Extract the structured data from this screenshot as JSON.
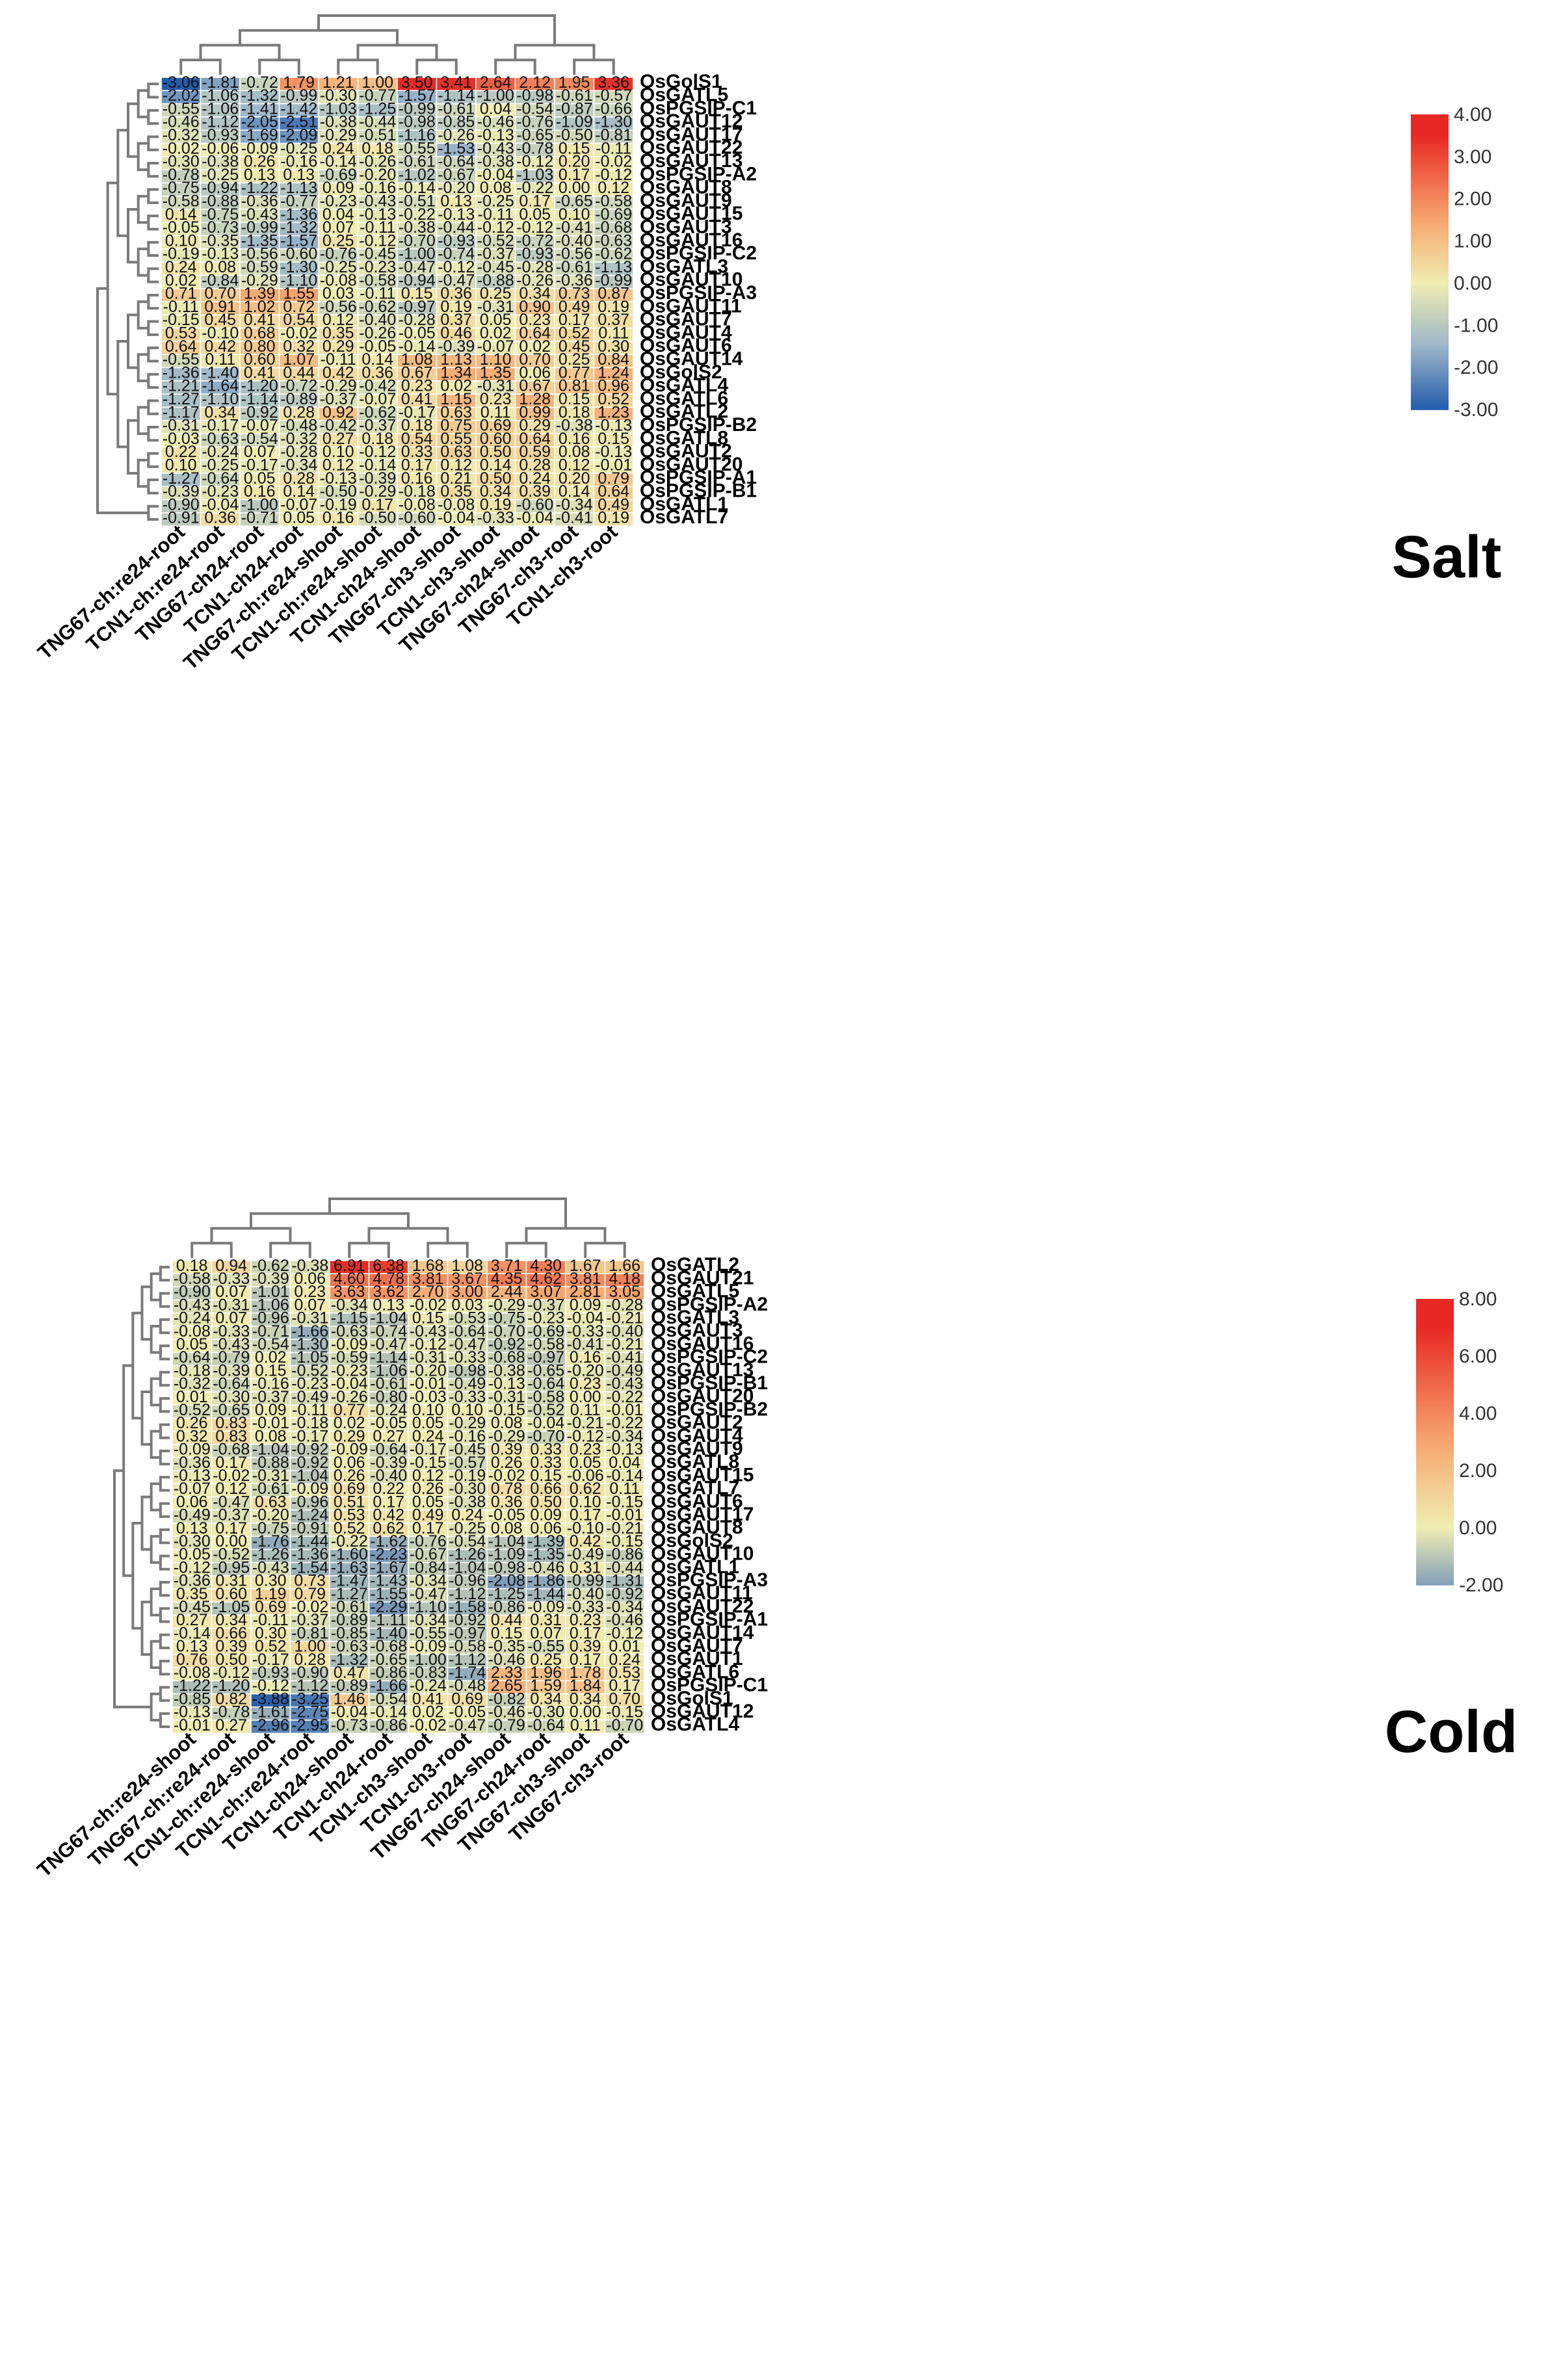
{
  "chart_data": [
    {
      "type": "heatmap",
      "title": "Salt",
      "columns": [
        "TNG67-ch:re24-root",
        "TCN1-ch:re24-root",
        "TNG67-ch24-root",
        "TCN1-ch24-root",
        "TNG67-ch:re24-shoot",
        "TCN1-ch:re24-shoot",
        "TCN1-ch24-shoot",
        "TNG67-ch3-shoot",
        "TCN1-ch3-shoot",
        "TNG67-ch24-shoot",
        "TNG67-ch3-root",
        "TCN1-ch3-root"
      ],
      "rows": [
        "OsGolS1",
        "OsGATL5",
        "OsPGSIP-C1",
        "OsGAUT12",
        "OsGAUT17",
        "OsGAUT22",
        "OsGAUT13",
        "OsPGSIP-A2",
        "OsGAUT8",
        "OsGAUT9",
        "OsGAUT15",
        "OsGAUT3",
        "OsGAUT16",
        "OsPGSIP-C2",
        "OsGATL3",
        "OsGAUT10",
        "OsPGSIP-A3",
        "OsGAUT11",
        "OsGAUT7",
        "OsGAUT4",
        "OsGAUT6",
        "OsGAUT14",
        "OsGolS2",
        "OsGATL4",
        "OsGATL6",
        "OsGATL2",
        "OsPGSIP-B2",
        "OsGATL8",
        "OsGAUT2",
        "OsGAUT20",
        "OsPGSIP-A1",
        "OsPGSIP-B1",
        "OsGATL1",
        "OsGATL7"
      ],
      "values": [
        [
          -3.06,
          -1.81,
          -0.72,
          1.79,
          1.21,
          1.0,
          3.5,
          3.41,
          2.64,
          2.12,
          1.95,
          3.36
        ],
        [
          -2.02,
          -1.06,
          -1.32,
          -0.99,
          -0.3,
          -0.77,
          -1.57,
          -1.14,
          -1.0,
          -0.98,
          -0.61,
          -0.57
        ],
        [
          -0.55,
          -1.06,
          -1.41,
          -1.42,
          -1.03,
          -1.25,
          -0.99,
          -0.61,
          0.04,
          -0.54,
          -0.87,
          -0.66
        ],
        [
          -0.46,
          -1.12,
          -2.05,
          -2.51,
          -0.38,
          -0.44,
          -0.98,
          -0.85,
          -0.46,
          -0.76,
          -1.09,
          -1.3
        ],
        [
          -0.32,
          -0.93,
          -1.69,
          -2.09,
          -0.29,
          -0.51,
          -1.16,
          -0.26,
          -0.13,
          -0.65,
          -0.5,
          -0.81
        ],
        [
          -0.02,
          -0.06,
          -0.09,
          -0.25,
          0.24,
          0.18,
          -0.55,
          -1.53,
          -0.43,
          -0.78,
          0.15,
          -0.11
        ],
        [
          -0.3,
          -0.38,
          0.26,
          -0.16,
          -0.14,
          -0.26,
          -0.61,
          -0.64,
          -0.38,
          -0.12,
          0.2,
          -0.02
        ],
        [
          -0.78,
          -0.25,
          0.13,
          0.13,
          -0.69,
          -0.2,
          -1.02,
          -0.67,
          -0.04,
          -1.03,
          0.17,
          -0.12
        ],
        [
          -0.75,
          -0.94,
          -1.22,
          -1.13,
          0.09,
          -0.16,
          -0.14,
          -0.2,
          0.08,
          -0.22,
          0.0,
          0.12
        ],
        [
          -0.58,
          -0.88,
          -0.36,
          -0.77,
          -0.23,
          -0.43,
          -0.51,
          0.13,
          -0.25,
          0.17,
          -0.65,
          -0.58
        ],
        [
          0.14,
          -0.75,
          -0.43,
          -1.36,
          0.04,
          -0.13,
          -0.22,
          -0.13,
          -0.11,
          0.05,
          0.1,
          -0.69
        ],
        [
          -0.05,
          -0.73,
          -0.99,
          -1.32,
          0.07,
          -0.11,
          -0.38,
          -0.44,
          -0.12,
          -0.12,
          -0.41,
          -0.68
        ],
        [
          0.1,
          -0.35,
          -1.35,
          -1.57,
          0.25,
          -0.12,
          -0.7,
          -0.93,
          -0.52,
          -0.72,
          -0.4,
          -0.63
        ],
        [
          -0.19,
          -0.13,
          -0.56,
          -0.6,
          -0.76,
          -0.45,
          -1.0,
          -0.74,
          -0.37,
          -0.93,
          -0.56,
          -0.62
        ],
        [
          0.24,
          0.08,
          -0.59,
          -1.3,
          -0.25,
          -0.23,
          -0.47,
          -0.12,
          -0.45,
          -0.28,
          -0.61,
          -1.13
        ],
        [
          0.02,
          -0.84,
          -0.29,
          -1.1,
          -0.08,
          -0.58,
          -0.94,
          -0.47,
          -0.88,
          -0.26,
          -0.36,
          -0.99
        ],
        [
          0.71,
          0.7,
          1.39,
          1.55,
          0.03,
          -0.11,
          0.15,
          0.36,
          0.25,
          0.34,
          0.73,
          0.87
        ],
        [
          -0.11,
          0.91,
          1.02,
          0.72,
          -0.56,
          -0.62,
          -0.97,
          0.19,
          -0.31,
          0.9,
          0.49,
          0.19
        ],
        [
          -0.15,
          0.45,
          0.41,
          0.54,
          0.12,
          -0.4,
          -0.28,
          0.37,
          0.05,
          0.23,
          0.17,
          0.37
        ],
        [
          0.53,
          -0.1,
          0.68,
          -0.02,
          0.35,
          -0.26,
          -0.05,
          0.46,
          0.02,
          0.64,
          0.52,
          0.11
        ],
        [
          0.64,
          0.42,
          0.8,
          0.32,
          0.29,
          -0.05,
          -0.14,
          -0.39,
          -0.07,
          0.02,
          0.45,
          0.3
        ],
        [
          -0.55,
          0.11,
          0.6,
          1.07,
          -0.11,
          0.14,
          1.08,
          1.13,
          1.1,
          0.7,
          0.25,
          0.84
        ],
        [
          -1.36,
          -1.4,
          0.41,
          0.44,
          0.42,
          0.36,
          0.67,
          1.34,
          1.35,
          0.06,
          0.77,
          1.24
        ],
        [
          -1.21,
          -1.64,
          -1.2,
          -0.72,
          -0.29,
          -0.42,
          0.23,
          0.02,
          -0.31,
          0.67,
          0.81,
          0.96
        ],
        [
          -1.27,
          -1.1,
          -1.14,
          -0.89,
          -0.37,
          -0.07,
          0.41,
          1.15,
          0.23,
          1.28,
          0.15,
          0.52
        ],
        [
          -1.17,
          0.34,
          -0.92,
          0.28,
          0.92,
          -0.62,
          -0.17,
          0.63,
          0.11,
          0.99,
          0.18,
          1.23
        ],
        [
          -0.31,
          -0.17,
          -0.07,
          -0.48,
          -0.42,
          -0.37,
          0.18,
          0.75,
          0.69,
          0.29,
          -0.38,
          -0.13
        ],
        [
          -0.03,
          -0.63,
          -0.54,
          -0.32,
          0.27,
          0.18,
          0.54,
          0.55,
          0.6,
          0.64,
          0.16,
          0.15
        ],
        [
          0.22,
          -0.24,
          0.07,
          -0.28,
          0.1,
          -0.12,
          0.33,
          0.63,
          0.5,
          0.59,
          0.08,
          -0.13
        ],
        [
          0.1,
          -0.25,
          -0.17,
          -0.34,
          0.12,
          -0.14,
          0.17,
          0.12,
          0.14,
          0.28,
          0.12,
          -0.01
        ],
        [
          -1.27,
          -0.64,
          0.05,
          0.28,
          -0.13,
          -0.39,
          0.16,
          0.21,
          0.5,
          0.24,
          0.2,
          0.79
        ],
        [
          -0.39,
          -0.23,
          0.16,
          0.14,
          -0.5,
          -0.29,
          -0.18,
          0.35,
          0.34,
          0.39,
          0.14,
          0.64
        ],
        [
          -0.9,
          -0.04,
          -1.0,
          -0.07,
          -0.19,
          0.17,
          -0.08,
          -0.08,
          0.19,
          -0.6,
          -0.34,
          0.49
        ],
        [
          -0.91,
          0.36,
          -0.71,
          0.05,
          0.16,
          -0.5,
          -0.6,
          -0.04,
          -0.33,
          -0.04,
          -0.41,
          0.19
        ]
      ],
      "legend_ticks": [
        "4.00",
        "3.00",
        "2.00",
        "1.00",
        "0.00",
        "-1.00",
        "-2.00",
        "-3.00"
      ],
      "color_range": [
        -3,
        4
      ],
      "label": "Salt"
    },
    {
      "type": "heatmap",
      "title": "Cold",
      "columns": [
        "TNG67-ch:re24-shoot",
        "TNG67-ch:re24-root",
        "TCN1-ch:re24-shoot",
        "TCN1-ch:re24-root",
        "TCN1-ch24-shoot",
        "TCN1-ch24-root",
        "TCN1-ch3-shoot",
        "TCN1-ch3-root",
        "TNG67-ch24-shoot",
        "TNG67-ch24-root",
        "TNG67-ch3-shoot",
        "TNG67-ch3-root"
      ],
      "rows": [
        "OsGATL2",
        "OsGAUT21",
        "OsGATL5",
        "OsPGSIP-A2",
        "OsGATL3",
        "OsGAUT3",
        "OsGAUT16",
        "OsPGSIP-C2",
        "OsGAUT13",
        "OsPGSIP-B1",
        "OsGAUT20",
        "OsPGSIP-B2",
        "OsGAUT2",
        "OsGAUT4",
        "OsGAUT9",
        "OsGATL8",
        "OsGAUT15",
        "OsGATL7",
        "OsGAUT6",
        "OsGAUT17",
        "OsGAUT8",
        "OsGolS2",
        "OsGAUT10",
        "OsGATL1",
        "OsPGSIP-A3",
        "OsGAUT11",
        "OsGAUT22",
        "OsPGSIP-A1",
        "OsGAUT14",
        "OsGAUT7",
        "OsGAUT1",
        "OsGATL6",
        "OsPGSIP-C1",
        "OsGolS1",
        "OsGAUT12",
        "OsGATL4"
      ],
      "values": [
        [
          0.18,
          0.94,
          -0.62,
          -0.38,
          6.91,
          6.38,
          1.68,
          1.08,
          3.71,
          4.3,
          1.67,
          1.66
        ],
        [
          -0.58,
          -0.33,
          -0.39,
          0.06,
          4.6,
          4.78,
          3.81,
          3.67,
          4.35,
          4.62,
          3.81,
          4.18
        ],
        [
          -0.9,
          0.07,
          -1.01,
          0.23,
          3.63,
          3.62,
          2.7,
          3.0,
          2.44,
          3.07,
          2.81,
          3.05
        ],
        [
          -0.43,
          -0.31,
          -1.06,
          0.07,
          -0.34,
          0.13,
          -0.02,
          0.03,
          -0.29,
          -0.37,
          0.09,
          -0.28
        ],
        [
          -0.24,
          0.07,
          -0.96,
          -0.31,
          -1.15,
          -1.04,
          0.15,
          -0.53,
          -0.75,
          -0.23,
          -0.04,
          -0.21
        ],
        [
          -0.08,
          -0.33,
          -0.71,
          -1.66,
          -0.63,
          -0.74,
          -0.43,
          -0.64,
          -0.7,
          -0.69,
          -0.33,
          -0.4
        ],
        [
          0.05,
          -0.43,
          -0.54,
          -1.3,
          -0.09,
          -0.47,
          -0.12,
          -0.47,
          -0.92,
          -0.58,
          -0.41,
          -0.21
        ],
        [
          -0.64,
          -0.79,
          0.02,
          -1.05,
          -0.59,
          -1.14,
          -0.31,
          -0.33,
          -0.68,
          -0.97,
          0.16,
          -0.41
        ],
        [
          -0.18,
          -0.39,
          0.15,
          -0.52,
          -0.23,
          -1.06,
          -0.2,
          -0.98,
          -0.38,
          -0.65,
          -0.2,
          -0.49
        ],
        [
          -0.32,
          -0.64,
          -0.16,
          -0.23,
          -0.04,
          -0.61,
          -0.01,
          -0.49,
          -0.13,
          -0.64,
          0.23,
          -0.43
        ],
        [
          0.01,
          -0.3,
          -0.37,
          -0.49,
          -0.26,
          -0.8,
          -0.03,
          -0.33,
          -0.31,
          -0.58,
          -0.0,
          -0.22
        ],
        [
          -0.52,
          -0.65,
          0.09,
          -0.11,
          0.77,
          -0.24,
          0.1,
          0.1,
          -0.15,
          -0.52,
          0.11,
          -0.01
        ],
        [
          0.26,
          0.83,
          -0.01,
          -0.18,
          0.02,
          -0.05,
          0.05,
          -0.29,
          0.08,
          -0.04,
          -0.21,
          -0.22
        ],
        [
          0.32,
          0.83,
          0.08,
          -0.17,
          0.29,
          0.27,
          0.24,
          -0.16,
          -0.29,
          -0.7,
          -0.12,
          -0.34
        ],
        [
          -0.09,
          -0.68,
          -1.04,
          -0.92,
          -0.09,
          -0.64,
          -0.17,
          -0.45,
          0.39,
          0.33,
          0.23,
          -0.13
        ],
        [
          -0.36,
          0.17,
          -0.88,
          -0.92,
          0.06,
          -0.39,
          -0.15,
          -0.57,
          0.26,
          0.33,
          0.05,
          0.04
        ],
        [
          -0.13,
          -0.02,
          -0.31,
          -1.04,
          0.26,
          -0.4,
          0.12,
          -0.19,
          -0.02,
          0.15,
          -0.06,
          -0.14
        ],
        [
          -0.07,
          0.12,
          -0.61,
          -0.09,
          0.69,
          0.22,
          0.26,
          -0.3,
          0.78,
          0.66,
          0.62,
          0.11
        ],
        [
          0.06,
          -0.47,
          0.63,
          -0.96,
          0.51,
          0.17,
          0.05,
          -0.38,
          0.36,
          0.5,
          0.1,
          -0.15
        ],
        [
          -0.49,
          -0.37,
          -0.2,
          -1.24,
          0.53,
          0.42,
          0.49,
          0.24,
          -0.05,
          0.09,
          0.17,
          -0.01
        ],
        [
          0.13,
          0.17,
          -0.75,
          -0.91,
          0.52,
          0.62,
          0.17,
          -0.25,
          0.08,
          0.06,
          -0.1,
          -0.21
        ],
        [
          -0.3,
          0.0,
          -1.76,
          -1.44,
          -0.22,
          -1.62,
          -0.76,
          -0.54,
          -1.04,
          -1.39,
          0.42,
          -0.15
        ],
        [
          -0.05,
          -0.52,
          -1.26,
          -1.36,
          -1.6,
          -2.23,
          -0.67,
          -1.26,
          -1.09,
          -1.35,
          -0.49,
          -0.86
        ],
        [
          -0.12,
          -0.95,
          -0.43,
          -1.54,
          -1.63,
          -1.67,
          -0.84,
          -1.04,
          -0.98,
          -0.46,
          0.31,
          -0.44
        ],
        [
          -0.36,
          0.31,
          0.3,
          0.73,
          -1.47,
          -1.43,
          -0.34,
          -0.96,
          -2.08,
          -1.86,
          -0.99,
          -1.31
        ],
        [
          0.35,
          0.6,
          1.19,
          0.79,
          -1.27,
          -1.55,
          -0.47,
          -1.12,
          -1.25,
          -1.44,
          -0.4,
          -0.92
        ],
        [
          -0.45,
          -1.05,
          0.69,
          -0.02,
          -0.61,
          -2.29,
          -1.1,
          -1.58,
          -0.86,
          -0.09,
          -0.33,
          -0.34
        ],
        [
          0.27,
          0.34,
          -0.11,
          -0.37,
          -0.89,
          -1.11,
          -0.34,
          -0.92,
          0.44,
          0.31,
          0.23,
          -0.46
        ],
        [
          -0.14,
          0.66,
          0.3,
          -0.81,
          -0.85,
          -1.4,
          -0.55,
          -0.97,
          0.15,
          0.07,
          0.17,
          -0.12
        ],
        [
          0.13,
          0.39,
          0.52,
          1.0,
          -0.63,
          -0.68,
          -0.09,
          -0.58,
          -0.35,
          -0.55,
          0.39,
          0.01
        ],
        [
          0.76,
          0.5,
          -0.17,
          0.28,
          -1.32,
          -0.65,
          -1.0,
          -1.12,
          -0.46,
          0.25,
          0.17,
          0.24
        ],
        [
          -0.08,
          -0.12,
          -0.93,
          -0.9,
          0.47,
          -0.86,
          -0.83,
          -1.74,
          2.33,
          1.96,
          1.78,
          0.53
        ],
        [
          -1.22,
          -1.2,
          -0.12,
          -1.12,
          -0.89,
          -1.66,
          -0.24,
          -0.48,
          2.65,
          1.59,
          1.84,
          0.17
        ],
        [
          -0.85,
          0.82,
          -3.88,
          -3.25,
          1.46,
          -0.54,
          0.41,
          0.69,
          -0.82,
          0.34,
          0.34,
          0.7
        ],
        [
          -0.13,
          -0.78,
          -1.61,
          -2.75,
          -0.04,
          -0.14,
          0.02,
          -0.05,
          -0.46,
          -0.3,
          -0.0,
          -0.15
        ],
        [
          -0.01,
          0.27,
          -2.96,
          -2.95,
          -0.73,
          -0.86,
          -0.02,
          -0.47,
          -0.79,
          -0.64,
          0.11,
          -0.7
        ]
      ],
      "legend_ticks": [
        "8.00",
        "6.00",
        "4.00",
        "2.00",
        "0.00",
        "-2.00"
      ],
      "color_range": [
        -2,
        8
      ],
      "label": "Cold"
    }
  ]
}
